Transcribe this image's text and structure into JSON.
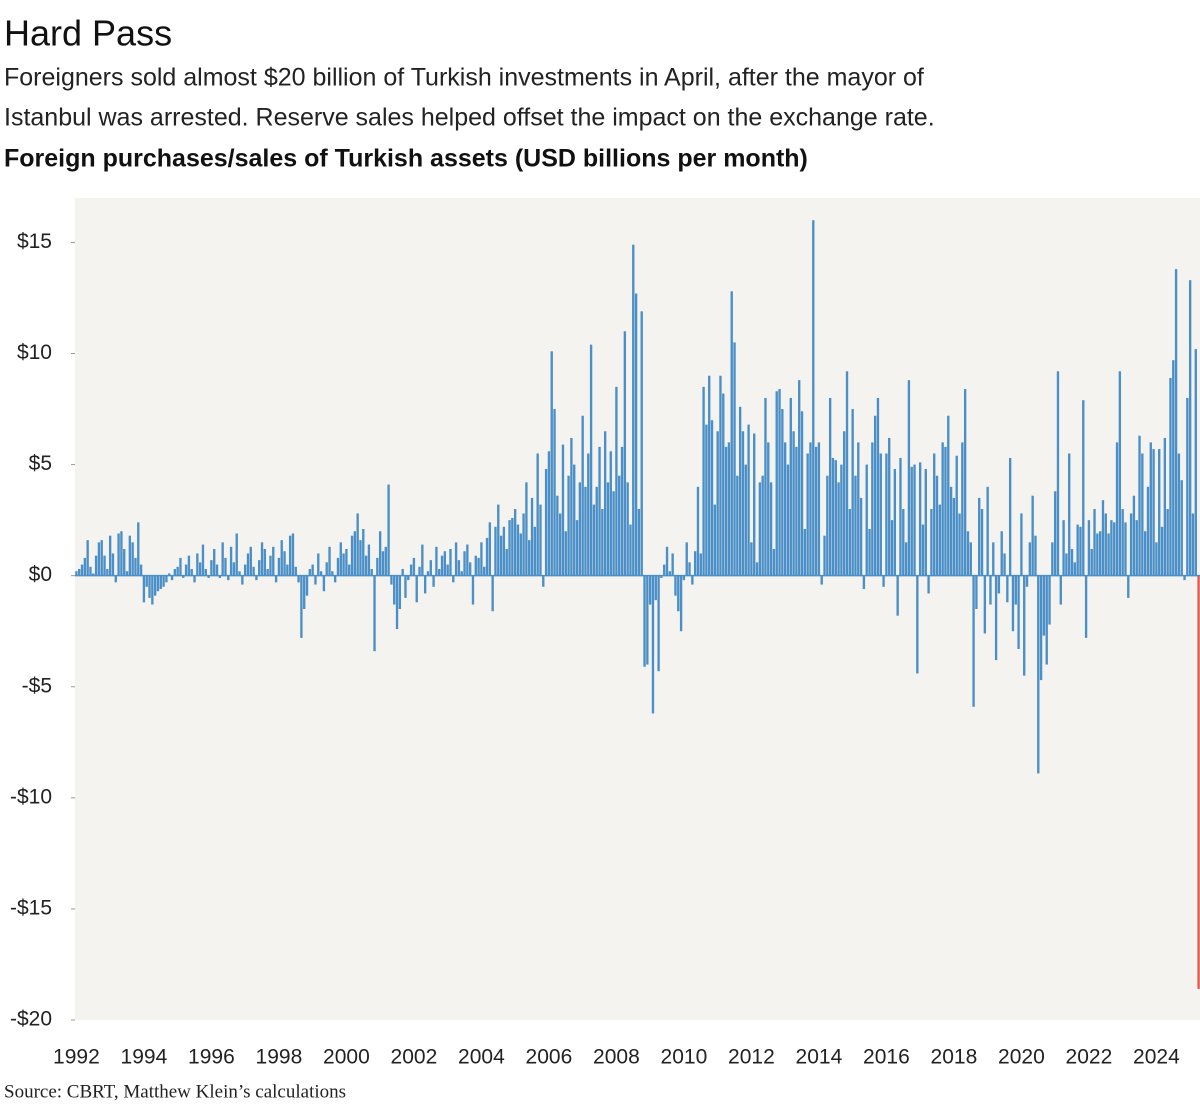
{
  "chart_data": {
    "type": "bar",
    "title": "Hard Pass",
    "subtitle": [
      "Foreigners sold almost $20 billion of Turkish investments in April, after the mayor of",
      "Istanbul was arrested. Reserve sales helped offset the impact on the exchange rate."
    ],
    "y_axis_title": "Foreign purchases/sales of Turkish assets (USD billions per month)",
    "source": "Source: CBRT, Matthew Klein’s calculations",
    "color": "#4a8fc7",
    "highlight_index": 399,
    "highlight_color": "#e05a4f",
    "ylim": [
      -20,
      17
    ],
    "yticks": [
      {
        "value": -20,
        "label": "-$20"
      },
      {
        "value": -15,
        "label": "-$15"
      },
      {
        "value": -10,
        "label": "-$10"
      },
      {
        "value": -5,
        "label": "-$5"
      },
      {
        "value": 0,
        "label": "$0"
      },
      {
        "value": 5,
        "label": "$5"
      },
      {
        "value": 10,
        "label": "$10"
      },
      {
        "value": 15,
        "label": "$15"
      }
    ],
    "categories": [
      "1992",
      null,
      null,
      null,
      null,
      null,
      null,
      null,
      null,
      null,
      null,
      null,
      null,
      null,
      null,
      null,
      null,
      null,
      null,
      null,
      null,
      null,
      null,
      null,
      "1994",
      null,
      null,
      null,
      null,
      null,
      null,
      null,
      null,
      null,
      null,
      null,
      null,
      null,
      null,
      null,
      null,
      null,
      null,
      null,
      null,
      null,
      null,
      null,
      "1996",
      null,
      null,
      null,
      null,
      null,
      null,
      null,
      null,
      null,
      null,
      null,
      null,
      null,
      null,
      null,
      null,
      null,
      null,
      null,
      null,
      null,
      null,
      null,
      "1998",
      null,
      null,
      null,
      null,
      null,
      null,
      null,
      null,
      null,
      null,
      null,
      null,
      null,
      null,
      null,
      null,
      null,
      null,
      null,
      null,
      null,
      null,
      null,
      "2000",
      null,
      null,
      null,
      null,
      null,
      null,
      null,
      null,
      null,
      null,
      null,
      null,
      null,
      null,
      null,
      null,
      null,
      null,
      null,
      null,
      null,
      null,
      null,
      "2002",
      null,
      null,
      null,
      null,
      null,
      null,
      null,
      null,
      null,
      null,
      null,
      null,
      null,
      null,
      null,
      null,
      null,
      null,
      null,
      null,
      null,
      null,
      null,
      "2004",
      null,
      null,
      null,
      null,
      null,
      null,
      null,
      null,
      null,
      null,
      null,
      null,
      null,
      null,
      null,
      null,
      null,
      null,
      null,
      null,
      null,
      null,
      null,
      "2006",
      null,
      null,
      null,
      null,
      null,
      null,
      null,
      null,
      null,
      null,
      null,
      null,
      null,
      null,
      null,
      null,
      null,
      null,
      null,
      null,
      null,
      null,
      null,
      "2008",
      null,
      null,
      null,
      null,
      null,
      null,
      null,
      null,
      null,
      null,
      null,
      null,
      null,
      null,
      null,
      null,
      null,
      null,
      null,
      null,
      null,
      null,
      null,
      "2010",
      null,
      null,
      null,
      null,
      null,
      null,
      null,
      null,
      null,
      null,
      null,
      null,
      null,
      null,
      null,
      null,
      null,
      null,
      null,
      null,
      null,
      null,
      null,
      "2012",
      null,
      null,
      null,
      null,
      null,
      null,
      null,
      null,
      null,
      null,
      null,
      null,
      null,
      null,
      null,
      null,
      null,
      null,
      null,
      null,
      null,
      null,
      null,
      "2014",
      null,
      null,
      null,
      null,
      null,
      null,
      null,
      null,
      null,
      null,
      null,
      null,
      null,
      null,
      null,
      null,
      null,
      null,
      null,
      null,
      null,
      null,
      null,
      "2016",
      null,
      null,
      null,
      null,
      null,
      null,
      null,
      null,
      null,
      null,
      null,
      null,
      null,
      null,
      null,
      null,
      null,
      null,
      null,
      null,
      null,
      null,
      null,
      "2018",
      null,
      null,
      null,
      null,
      null,
      null,
      null,
      null,
      null,
      null,
      null,
      null,
      null,
      null,
      null,
      null,
      null,
      null,
      null,
      null,
      null,
      null,
      null,
      "2020",
      null,
      null,
      null,
      null,
      null,
      null,
      null,
      null,
      null,
      null,
      null,
      null,
      null,
      null,
      null,
      null,
      null,
      null,
      null,
      null,
      null,
      null,
      null,
      "2022",
      null,
      null,
      null,
      null,
      null,
      null,
      null,
      null,
      null,
      null,
      null,
      null,
      null,
      null,
      null,
      null,
      null,
      null,
      null,
      null,
      null,
      null,
      null,
      "2024",
      null,
      null,
      null,
      null,
      null,
      null,
      null,
      null,
      null,
      null,
      null,
      null,
      null,
      null,
      null
    ],
    "values": [
      0.2,
      0.3,
      0.5,
      0.8,
      1.6,
      0.4,
      0.1,
      0.9,
      1.5,
      1.6,
      0.9,
      0.3,
      1.8,
      1.0,
      -0.3,
      1.9,
      2.0,
      1.2,
      0.2,
      1.8,
      1.5,
      0.8,
      2.4,
      0.5,
      -1.2,
      -0.5,
      -1.0,
      -1.3,
      -0.9,
      -0.7,
      -0.6,
      -0.5,
      -0.3,
      0.1,
      -0.2,
      0.3,
      0.4,
      0.8,
      -0.1,
      0.5,
      0.9,
      0.3,
      -0.3,
      1.0,
      0.6,
      1.4,
      0.3,
      -0.1,
      0.7,
      1.2,
      0.5,
      -0.1,
      1.5,
      0.8,
      -0.2,
      1.3,
      0.6,
      1.9,
      0.2,
      -0.4,
      0.5,
      1.0,
      1.3,
      0.4,
      -0.2,
      0.7,
      1.5,
      1.2,
      0.3,
      0.9,
      1.3,
      -0.3,
      0.8,
      1.6,
      1.1,
      0.5,
      1.8,
      1.9,
      0.4,
      -0.3,
      -2.8,
      -1.5,
      -0.9,
      0.3,
      0.5,
      -0.4,
      1.0,
      0.2,
      -0.7,
      0.6,
      1.3,
      0.2,
      -0.3,
      0.8,
      1.5,
      1.0,
      1.2,
      0.5,
      1.8,
      2.0,
      2.8,
      1.6,
      2.1,
      0.9,
      1.4,
      0.3,
      -3.4,
      0.8,
      2.0,
      1.1,
      1.3,
      4.1,
      -0.4,
      -1.3,
      -2.4,
      -1.5,
      0.3,
      -1.0,
      -0.2,
      0.5,
      0.8,
      -1.2,
      0.4,
      1.4,
      -0.8,
      0.2,
      0.7,
      -0.5,
      1.3,
      0.3,
      0.9,
      1.1,
      0.5,
      1.2,
      -0.3,
      1.5,
      0.7,
      0.2,
      1.1,
      1.4,
      0.6,
      -1.3,
      0.9,
      0.8,
      1.5,
      0.4,
      1.7,
      2.4,
      -1.6,
      2.2,
      3.2,
      1.8,
      2.2,
      1.2,
      2.5,
      2.6,
      3.0,
      2.3,
      1.9,
      2.8,
      4.2,
      1.6,
      3.5,
      2.2,
      5.5,
      3.2,
      -0.5,
      4.8,
      5.6,
      10.1,
      7.5,
      3.6,
      2.8,
      5.9,
      2.0,
      4.5,
      6.2,
      5.0,
      2.5,
      4.2,
      7.2,
      4.0,
      5.5,
      10.4,
      3.2,
      4.0,
      5.8,
      3.0,
      6.5,
      4.2,
      5.6,
      3.8,
      8.5,
      4.5,
      5.8,
      11.0,
      4.2,
      2.3,
      14.9,
      12.7,
      3.0,
      11.9,
      -4.1,
      -4.0,
      -1.3,
      -6.2,
      -1.1,
      -4.3,
      -0.1,
      0.5,
      1.3,
      0.2,
      1.0,
      -0.9,
      -1.6,
      -2.5,
      -0.2,
      1.5,
      0.6,
      -0.4,
      1.1,
      4.0,
      1.0,
      8.5,
      6.8,
      9.0,
      7.0,
      3.2,
      6.5,
      9.0,
      8.2,
      5.8,
      6.0,
      12.8,
      10.5,
      4.5,
      7.6,
      6.5,
      5.0,
      6.8,
      1.5,
      6.4,
      0.6,
      4.2,
      4.5,
      8.0,
      6.0,
      4.2,
      1.2,
      8.3,
      8.4,
      7.5,
      6.0,
      5.0,
      8.0,
      6.5,
      5.8,
      8.8,
      7.4,
      2.1,
      5.5,
      6.0,
      16.0,
      5.8,
      6.0,
      -0.4,
      1.8,
      4.5,
      8.0,
      5.3,
      5.2,
      4.2,
      5.0,
      6.5,
      9.2,
      3.0,
      7.5,
      4.5,
      6.0,
      3.5,
      -0.6,
      5.0,
      2.1,
      6.0,
      7.2,
      8.0,
      5.5,
      -0.5,
      5.5,
      6.2,
      2.5,
      4.8,
      -1.8,
      5.3,
      3.0,
      1.5,
      8.8,
      4.9,
      5.0,
      -4.4,
      5.1,
      2.3,
      4.8,
      -0.8,
      3.0,
      5.5,
      4.5,
      3.2,
      6.0,
      5.8,
      7.2,
      4.0,
      3.5,
      5.4,
      2.8,
      6.0,
      8.4,
      2.0,
      1.5,
      -5.9,
      -1.5,
      3.5,
      3.0,
      -2.6,
      4.0,
      -1.3,
      1.5,
      -3.8,
      -0.8,
      2.0,
      1.0,
      -1.2,
      5.3,
      -2.5,
      -1.3,
      -3.3,
      2.8,
      -4.5,
      -0.5,
      1.5,
      3.6,
      1.8,
      -8.9,
      -4.7,
      -2.7,
      -4.0,
      -2.2,
      1.5,
      3.8,
      9.2,
      -1.3,
      2.5,
      1.0,
      5.5,
      1.2,
      0.6,
      2.3,
      2.2,
      7.9,
      -2.8,
      2.5,
      1.2,
      3.0,
      1.9,
      2.0,
      3.4,
      2.8,
      1.9,
      2.5,
      2.4,
      6.0,
      9.2,
      3.0,
      2.4,
      -1.0,
      2.8,
      3.6,
      2.5,
      6.3,
      5.5,
      2.0,
      4.0,
      6.0,
      5.7,
      1.5,
      5.7,
      2.2,
      6.2,
      3.0,
      8.9,
      9.7,
      13.8,
      5.5,
      4.3,
      -0.2,
      8.0,
      13.3,
      2.8,
      10.2,
      -18.6
    ]
  }
}
